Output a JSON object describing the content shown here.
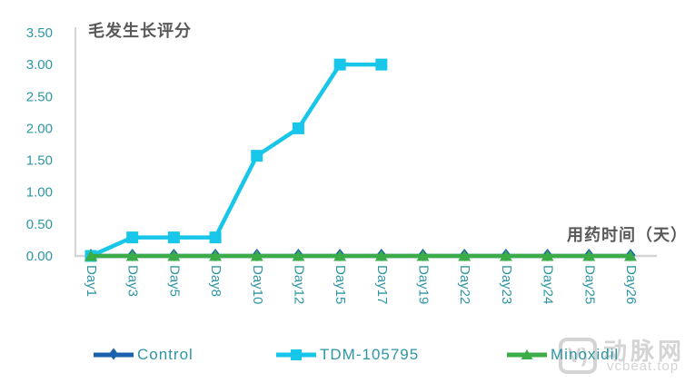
{
  "title": "毛发生长评分",
  "x_axis_title": "用药时间（天）",
  "colors": {
    "teal_text": "#2E96A3",
    "axis_line": "#D5D5D5",
    "title_gray": "#595959",
    "control_blue": "#1A61AE",
    "tdm_cyan": "#17C6E9",
    "minoxidil_green": "#3BAC47",
    "watermark_gray": "#D4D4D4"
  },
  "chart_data": {
    "type": "line",
    "title": "毛发生长评分",
    "xlabel": "用药时间（天）",
    "ylabel": "",
    "grid": false,
    "legend_position": "bottom",
    "ylim": [
      0,
      3.5
    ],
    "x_tick_rotation_deg": 90,
    "y_tick_labels": [
      "0.00",
      "0.50",
      "1.00",
      "1.50",
      "2.00",
      "2.50",
      "3.00",
      "3.50"
    ],
    "categories": [
      "Day1",
      "Day3",
      "Day5",
      "Day8",
      "Day10",
      "Day12",
      "Day15",
      "Day17",
      "Day19",
      "Day22",
      "Day23",
      "Day24",
      "Day25",
      "Day26"
    ],
    "series": [
      {
        "name": "Control",
        "marker": "diamond",
        "color": "#1A61AE",
        "values": [
          0,
          0,
          0,
          0,
          0,
          0,
          0,
          0,
          0,
          0,
          0,
          0,
          0,
          0
        ]
      },
      {
        "name": "TDM-105795",
        "marker": "square",
        "color": "#17C6E9",
        "values": [
          0,
          0.29,
          0.29,
          0.29,
          1.57,
          2.0,
          3.0,
          3.0,
          null,
          null,
          null,
          null,
          null,
          null
        ]
      },
      {
        "name": "Minoxidil",
        "marker": "triangle",
        "color": "#3BAC47",
        "values": [
          0,
          0,
          0,
          0,
          0,
          0,
          0,
          0,
          0,
          0,
          0,
          0,
          0,
          0
        ]
      }
    ]
  },
  "watermark": {
    "logo": "V)",
    "name": "动脉网",
    "site": "vcbeat.top"
  }
}
